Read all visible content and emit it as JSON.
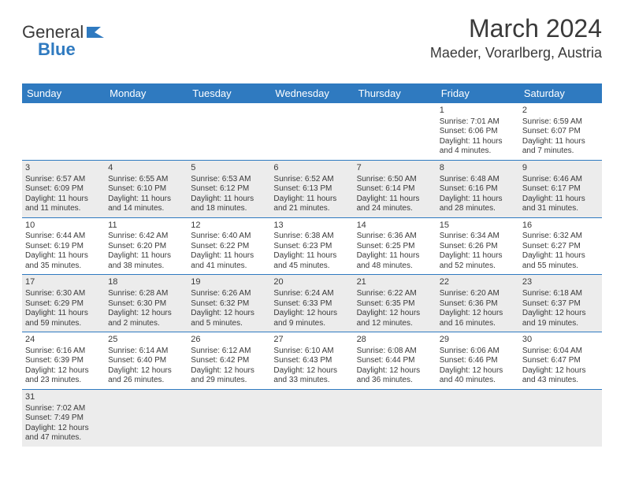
{
  "logo": {
    "text1": "General",
    "text2": "Blue"
  },
  "header": {
    "month": "March 2024",
    "location": "Maeder, Vorarlberg, Austria"
  },
  "colors": {
    "accent": "#2f7ac0",
    "shade": "#ececec",
    "text": "#3a3a3a",
    "background": "#ffffff"
  },
  "dayNames": [
    "Sunday",
    "Monday",
    "Tuesday",
    "Wednesday",
    "Thursday",
    "Friday",
    "Saturday"
  ],
  "weeks": [
    [
      null,
      null,
      null,
      null,
      null,
      {
        "day": "1",
        "sunrise": "Sunrise: 7:01 AM",
        "sunset": "Sunset: 6:06 PM",
        "daylight1": "Daylight: 11 hours",
        "daylight2": "and 4 minutes."
      },
      {
        "day": "2",
        "sunrise": "Sunrise: 6:59 AM",
        "sunset": "Sunset: 6:07 PM",
        "daylight1": "Daylight: 11 hours",
        "daylight2": "and 7 minutes."
      }
    ],
    [
      {
        "day": "3",
        "sunrise": "Sunrise: 6:57 AM",
        "sunset": "Sunset: 6:09 PM",
        "daylight1": "Daylight: 11 hours",
        "daylight2": "and 11 minutes."
      },
      {
        "day": "4",
        "sunrise": "Sunrise: 6:55 AM",
        "sunset": "Sunset: 6:10 PM",
        "daylight1": "Daylight: 11 hours",
        "daylight2": "and 14 minutes."
      },
      {
        "day": "5",
        "sunrise": "Sunrise: 6:53 AM",
        "sunset": "Sunset: 6:12 PM",
        "daylight1": "Daylight: 11 hours",
        "daylight2": "and 18 minutes."
      },
      {
        "day": "6",
        "sunrise": "Sunrise: 6:52 AM",
        "sunset": "Sunset: 6:13 PM",
        "daylight1": "Daylight: 11 hours",
        "daylight2": "and 21 minutes."
      },
      {
        "day": "7",
        "sunrise": "Sunrise: 6:50 AM",
        "sunset": "Sunset: 6:14 PM",
        "daylight1": "Daylight: 11 hours",
        "daylight2": "and 24 minutes."
      },
      {
        "day": "8",
        "sunrise": "Sunrise: 6:48 AM",
        "sunset": "Sunset: 6:16 PM",
        "daylight1": "Daylight: 11 hours",
        "daylight2": "and 28 minutes."
      },
      {
        "day": "9",
        "sunrise": "Sunrise: 6:46 AM",
        "sunset": "Sunset: 6:17 PM",
        "daylight1": "Daylight: 11 hours",
        "daylight2": "and 31 minutes."
      }
    ],
    [
      {
        "day": "10",
        "sunrise": "Sunrise: 6:44 AM",
        "sunset": "Sunset: 6:19 PM",
        "daylight1": "Daylight: 11 hours",
        "daylight2": "and 35 minutes."
      },
      {
        "day": "11",
        "sunrise": "Sunrise: 6:42 AM",
        "sunset": "Sunset: 6:20 PM",
        "daylight1": "Daylight: 11 hours",
        "daylight2": "and 38 minutes."
      },
      {
        "day": "12",
        "sunrise": "Sunrise: 6:40 AM",
        "sunset": "Sunset: 6:22 PM",
        "daylight1": "Daylight: 11 hours",
        "daylight2": "and 41 minutes."
      },
      {
        "day": "13",
        "sunrise": "Sunrise: 6:38 AM",
        "sunset": "Sunset: 6:23 PM",
        "daylight1": "Daylight: 11 hours",
        "daylight2": "and 45 minutes."
      },
      {
        "day": "14",
        "sunrise": "Sunrise: 6:36 AM",
        "sunset": "Sunset: 6:25 PM",
        "daylight1": "Daylight: 11 hours",
        "daylight2": "and 48 minutes."
      },
      {
        "day": "15",
        "sunrise": "Sunrise: 6:34 AM",
        "sunset": "Sunset: 6:26 PM",
        "daylight1": "Daylight: 11 hours",
        "daylight2": "and 52 minutes."
      },
      {
        "day": "16",
        "sunrise": "Sunrise: 6:32 AM",
        "sunset": "Sunset: 6:27 PM",
        "daylight1": "Daylight: 11 hours",
        "daylight2": "and 55 minutes."
      }
    ],
    [
      {
        "day": "17",
        "sunrise": "Sunrise: 6:30 AM",
        "sunset": "Sunset: 6:29 PM",
        "daylight1": "Daylight: 11 hours",
        "daylight2": "and 59 minutes."
      },
      {
        "day": "18",
        "sunrise": "Sunrise: 6:28 AM",
        "sunset": "Sunset: 6:30 PM",
        "daylight1": "Daylight: 12 hours",
        "daylight2": "and 2 minutes."
      },
      {
        "day": "19",
        "sunrise": "Sunrise: 6:26 AM",
        "sunset": "Sunset: 6:32 PM",
        "daylight1": "Daylight: 12 hours",
        "daylight2": "and 5 minutes."
      },
      {
        "day": "20",
        "sunrise": "Sunrise: 6:24 AM",
        "sunset": "Sunset: 6:33 PM",
        "daylight1": "Daylight: 12 hours",
        "daylight2": "and 9 minutes."
      },
      {
        "day": "21",
        "sunrise": "Sunrise: 6:22 AM",
        "sunset": "Sunset: 6:35 PM",
        "daylight1": "Daylight: 12 hours",
        "daylight2": "and 12 minutes."
      },
      {
        "day": "22",
        "sunrise": "Sunrise: 6:20 AM",
        "sunset": "Sunset: 6:36 PM",
        "daylight1": "Daylight: 12 hours",
        "daylight2": "and 16 minutes."
      },
      {
        "day": "23",
        "sunrise": "Sunrise: 6:18 AM",
        "sunset": "Sunset: 6:37 PM",
        "daylight1": "Daylight: 12 hours",
        "daylight2": "and 19 minutes."
      }
    ],
    [
      {
        "day": "24",
        "sunrise": "Sunrise: 6:16 AM",
        "sunset": "Sunset: 6:39 PM",
        "daylight1": "Daylight: 12 hours",
        "daylight2": "and 23 minutes."
      },
      {
        "day": "25",
        "sunrise": "Sunrise: 6:14 AM",
        "sunset": "Sunset: 6:40 PM",
        "daylight1": "Daylight: 12 hours",
        "daylight2": "and 26 minutes."
      },
      {
        "day": "26",
        "sunrise": "Sunrise: 6:12 AM",
        "sunset": "Sunset: 6:42 PM",
        "daylight1": "Daylight: 12 hours",
        "daylight2": "and 29 minutes."
      },
      {
        "day": "27",
        "sunrise": "Sunrise: 6:10 AM",
        "sunset": "Sunset: 6:43 PM",
        "daylight1": "Daylight: 12 hours",
        "daylight2": "and 33 minutes."
      },
      {
        "day": "28",
        "sunrise": "Sunrise: 6:08 AM",
        "sunset": "Sunset: 6:44 PM",
        "daylight1": "Daylight: 12 hours",
        "daylight2": "and 36 minutes."
      },
      {
        "day": "29",
        "sunrise": "Sunrise: 6:06 AM",
        "sunset": "Sunset: 6:46 PM",
        "daylight1": "Daylight: 12 hours",
        "daylight2": "and 40 minutes."
      },
      {
        "day": "30",
        "sunrise": "Sunrise: 6:04 AM",
        "sunset": "Sunset: 6:47 PM",
        "daylight1": "Daylight: 12 hours",
        "daylight2": "and 43 minutes."
      }
    ],
    [
      {
        "day": "31",
        "sunrise": "Sunrise: 7:02 AM",
        "sunset": "Sunset: 7:49 PM",
        "daylight1": "Daylight: 12 hours",
        "daylight2": "and 47 minutes."
      },
      null,
      null,
      null,
      null,
      null,
      null
    ]
  ]
}
